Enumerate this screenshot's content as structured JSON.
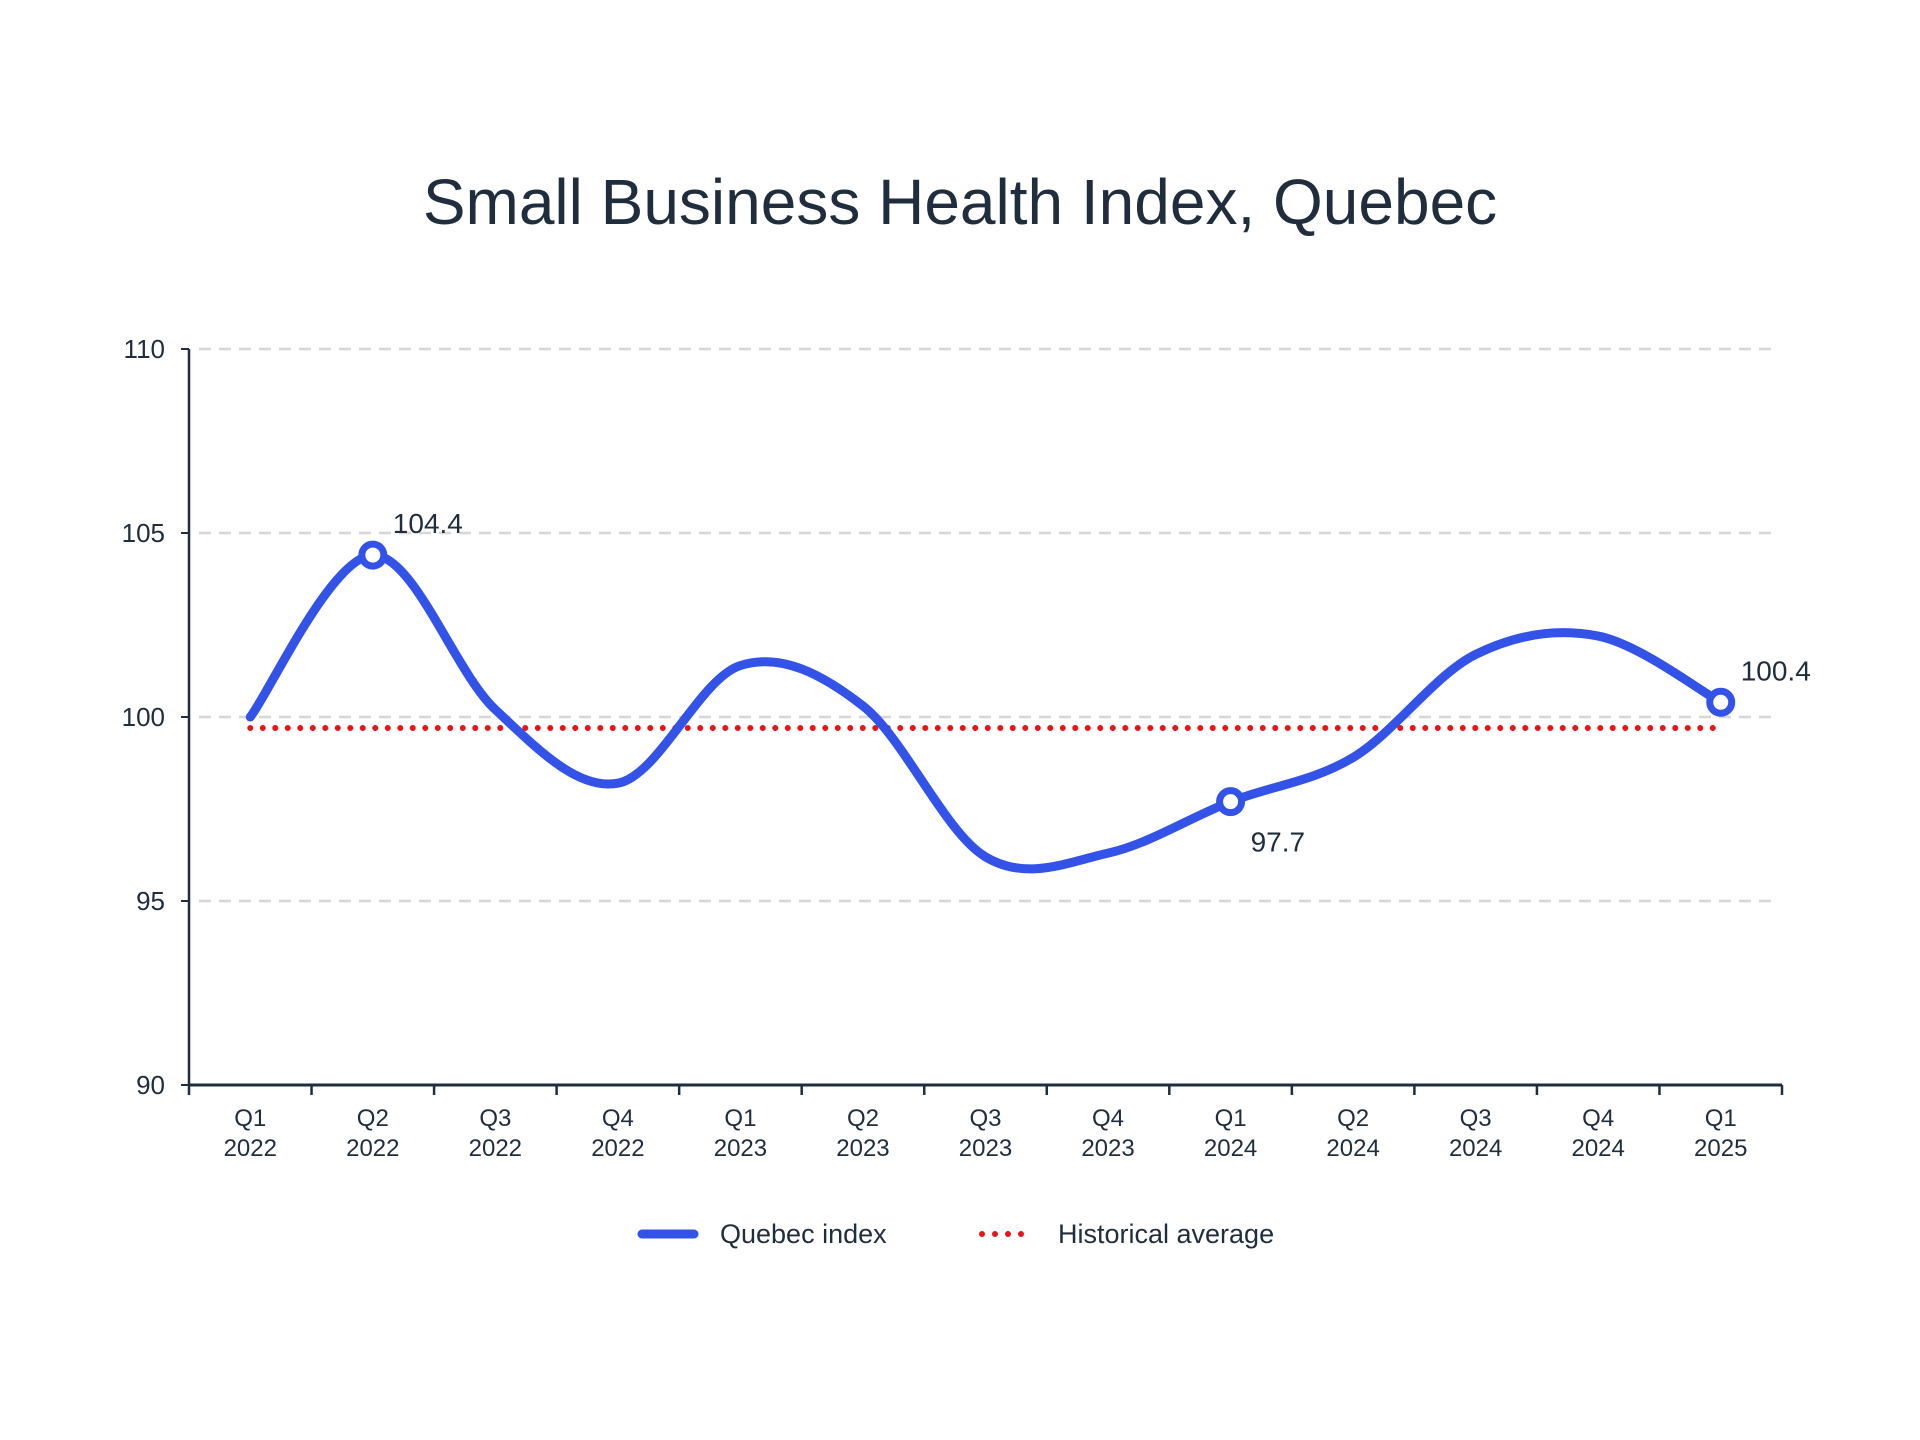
{
  "chart_data": {
    "type": "line",
    "title": "Small Business Health Index, Quebec",
    "xlabel": "",
    "ylabel": "",
    "ylim": [
      90,
      110
    ],
    "yticks": [
      90,
      95,
      100,
      105,
      110
    ],
    "grid": true,
    "legend_position": "bottom-center",
    "categories": [
      [
        "Q1",
        "2022"
      ],
      [
        "Q2",
        "2022"
      ],
      [
        "Q3",
        "2022"
      ],
      [
        "Q4",
        "2022"
      ],
      [
        "Q1",
        "2023"
      ],
      [
        "Q2",
        "2023"
      ],
      [
        "Q3",
        "2023"
      ],
      [
        "Q4",
        "2023"
      ],
      [
        "Q1",
        "2024"
      ],
      [
        "Q2",
        "2024"
      ],
      [
        "Q3",
        "2024"
      ],
      [
        "Q4",
        "2024"
      ],
      [
        "Q1",
        "2025"
      ]
    ],
    "series": [
      {
        "name": "Quebec index",
        "color": "#3352e8",
        "style": "solid-smooth",
        "values": [
          100.0,
          104.4,
          100.2,
          98.2,
          101.4,
          100.3,
          96.2,
          96.3,
          97.7,
          98.9,
          101.7,
          102.2,
          100.4
        ]
      },
      {
        "name": "Historical average",
        "color": "#e8141a",
        "style": "dotted",
        "values": [
          99.7,
          99.7,
          99.7,
          99.7,
          99.7,
          99.7,
          99.7,
          99.7,
          99.7,
          99.7,
          99.7,
          99.7,
          99.7
        ]
      }
    ],
    "annotations": [
      {
        "index": 1,
        "label": "104.4",
        "position": "above-right"
      },
      {
        "index": 8,
        "label": "97.7",
        "position": "below-right"
      },
      {
        "index": 12,
        "label": "100.4",
        "position": "above-right"
      }
    ]
  }
}
